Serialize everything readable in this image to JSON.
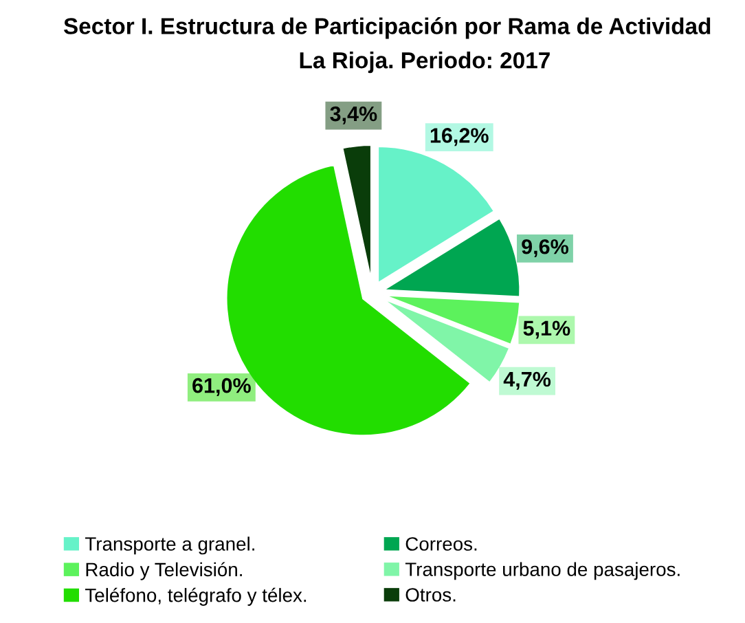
{
  "chart_data": {
    "type": "pie",
    "title": "Sector I. Estructura de Participación por Rama de Actividad",
    "subtitle": "La Rioja. Periodo: 2017",
    "categories": [
      "Transporte a granel.",
      "Correos.",
      "Radio y Televisión.",
      "Transporte urbano de pasajeros.",
      "Teléfono, telégrafo y télex.",
      "Otros."
    ],
    "values": [
      16.2,
      9.6,
      5.1,
      4.7,
      61.0,
      3.4
    ],
    "value_labels": [
      "16,2%",
      "9,6%",
      "5,1%",
      "4,7%",
      "61,0%",
      "3,4%"
    ],
    "colors": [
      "#66f2c8",
      "#00a651",
      "#5cf25c",
      "#80f5a8",
      "#22dd00",
      "#0a3d0a"
    ],
    "legend": "bottom"
  }
}
